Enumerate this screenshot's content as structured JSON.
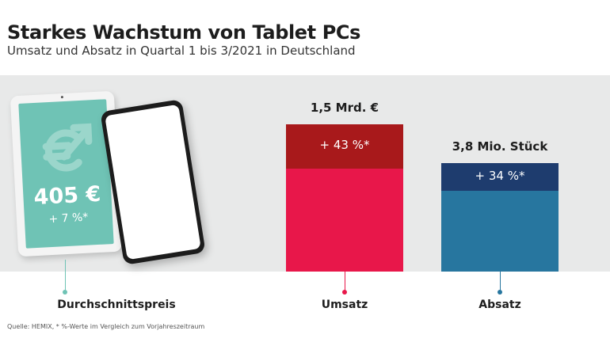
{
  "header": {
    "title": "Starkes Wachstum von Tablet PCs",
    "subtitle": "Umsatz und Absatz in Quartal 1 bis 3/2021 in Deutschland"
  },
  "chart_data": {
    "type": "bar",
    "title": "Starkes Wachstum von Tablet PCs",
    "subtitle": "Umsatz und Absatz in Quartal 1 bis 3/2021 in Deutschland",
    "categories": [
      "Durchschnittspreis",
      "Umsatz",
      "Absatz"
    ],
    "price": {
      "label": "Durchschnittspreis",
      "value_text": "405 €",
      "value": 405,
      "unit": "€",
      "change_text": "+ 7 %*",
      "change_percent": 7
    },
    "bars": [
      {
        "category": "Umsatz",
        "value": 1.5,
        "value_text": "1,5 Mrd. €",
        "unit": "Mrd. €",
        "growth_text": "+ 43 %*",
        "growth_percent": 43,
        "color": "#e8174a",
        "growth_color": "#a8191b"
      },
      {
        "category": "Absatz",
        "value": 3.8,
        "value_text": "3,8 Mio. Stück",
        "unit": "Mio. Stück",
        "growth_text": "+ 34 %*",
        "growth_percent": 34,
        "color": "#27769f",
        "growth_color": "#1e3c6e"
      }
    ]
  },
  "colors": {
    "band": "#e8e9e9",
    "tablet_screen": "#6fc3b5",
    "price_connector": "#6fc3b5",
    "umsatz": "#e8174a",
    "absatz": "#27769f"
  },
  "footer": {
    "source": "Quelle: HEMIX, * %-Werte im Vergleich zum Vorjahreszeitraum"
  }
}
